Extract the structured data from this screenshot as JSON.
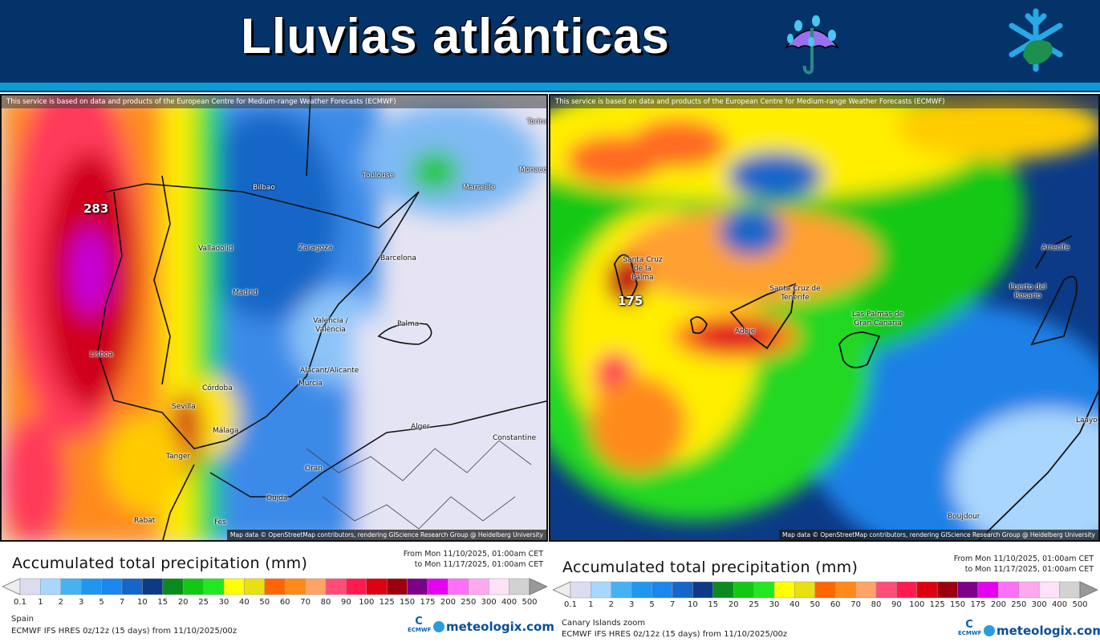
{
  "header": {
    "title": "Lluvias atlánticas",
    "icons": [
      "umbrella-with-rain-icon",
      "snowflake-leaf-logo-icon"
    ],
    "background": "#04336a",
    "strip_color": "#0c9bd4"
  },
  "maps": [
    {
      "ecmwf_note": "This service is based on data and products of the European Centre for Medium-range Weather Forecasts (ECMWF)",
      "attribution": "Map data © OpenStreetMap contributors, rendering GIScience Research Group @ Heidelberg University",
      "max_value": "283",
      "cities": [
        "Torino",
        "Toulouse",
        "Monaco",
        "Bilbao",
        "Marseille",
        "Valladolid",
        "Zaragoza",
        "Barcelona",
        "Madrid",
        "Valencia / València",
        "Palma",
        "Lisboa",
        "Alacant/Alicante",
        "Murcia",
        "Córdoba",
        "Sevilla",
        "Málaga",
        "Tanger",
        "Alger",
        "Constantine",
        "Oran",
        "Oujda",
        "Rabat",
        "Fès"
      ]
    },
    {
      "ecmwf_note": "This service is based on data and products of the European Centre for Medium-range Weather Forecasts (ECMWF)",
      "attribution": "Map data © OpenStreetMap contributors, rendering GIScience Research Group @ Heidelberg University",
      "max_value": "175",
      "cities": [
        "Santa Cruz de la Palma",
        "Santa Cruz de Tenerife",
        "Adeje",
        "Las Palmas de Gran Canaria",
        "Arrecife",
        "Puerto del Rosario",
        "Boujdour",
        "Laayoune"
      ]
    }
  ],
  "legend": {
    "title": "Accumulated total precipitation (mm)",
    "from": "From Mon 11/10/2025, 01:00am CET",
    "to": "to Mon 11/17/2025, 01:00am CET",
    "ticks": [
      "0.1",
      "1",
      "2",
      "3",
      "5",
      "7",
      "10",
      "15",
      "20",
      "25",
      "30",
      "40",
      "50",
      "60",
      "70",
      "80",
      "90",
      "100",
      "125",
      "150",
      "175",
      "200",
      "250",
      "300",
      "400",
      "500"
    ],
    "colors": [
      "#dcdcf0",
      "#a8d6fc",
      "#46b2f4",
      "#1f97ef",
      "#1a86ee",
      "#1466c8",
      "#0c3a86",
      "#0a8a1e",
      "#12c814",
      "#22e822",
      "#ffff00",
      "#e8e010",
      "#ff6600",
      "#ff8a1a",
      "#ffa466",
      "#ff4c78",
      "#ff1a50",
      "#dd0010",
      "#9c0010",
      "#7c0088",
      "#e600f0",
      "#ff70fa",
      "#ffa8f0",
      "#ffe2f8",
      "#d2d2d2"
    ],
    "model": "ECMWF IFS HRES 0z/12z (15 days) from  11/10/2025/00z",
    "regions": [
      "Spain",
      "Canary Islands zoom"
    ],
    "ecmwf_label": "ECMWF",
    "brand": "meteologix.com"
  }
}
